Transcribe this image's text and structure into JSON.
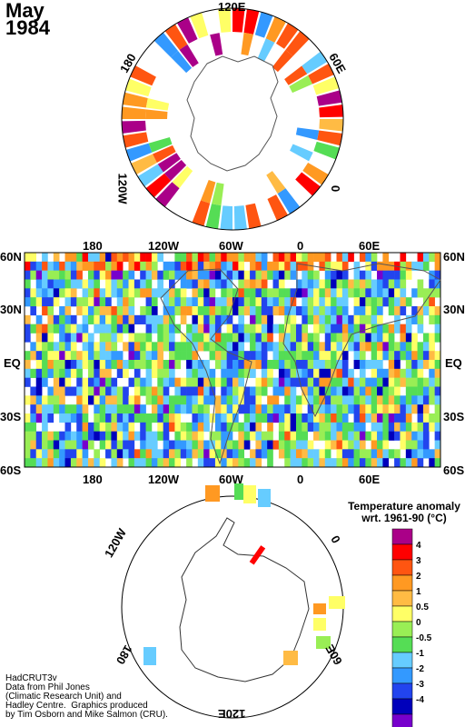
{
  "title": {
    "month": "May",
    "year": "1984"
  },
  "north_polar": {
    "labels": {
      "top": "120E",
      "left": "180",
      "right": "60E",
      "lower_left": "120W",
      "lower_right": "0"
    }
  },
  "global_map": {
    "top_labels": [
      "180",
      "120W",
      "60W",
      "0",
      "60E"
    ],
    "bottom_labels": [
      "180",
      "120W",
      "60W",
      "0",
      "60E"
    ],
    "lat_labels": [
      "60N",
      "30N",
      "EQ",
      "30S",
      "60S"
    ]
  },
  "south_polar": {
    "labels": {
      "upper_left": "120W",
      "top_right": "0",
      "left": "180",
      "lower_right": "60E",
      "bottom": "120E"
    }
  },
  "legend": {
    "title_line1": "Temperature anomaly",
    "title_line2": "wrt. 1961-90  (°C)",
    "levels": [
      "4",
      "3",
      "2",
      "1",
      "0.5",
      "0",
      "-0.5",
      "-1",
      "-2",
      "-3",
      "-4"
    ],
    "colors": [
      "#aa0088",
      "#ff0000",
      "#ff5511",
      "#ff9922",
      "#ffbb44",
      "#ffff66",
      "#99ee55",
      "#55dd55",
      "#66ccff",
      "#3399ff",
      "#2244ee",
      "#0000bb",
      "#7700cc"
    ]
  },
  "credits": {
    "line1": "HadCRUT3v",
    "line2": "Data from Phil Jones",
    "line3": "(Climatic Research Unit) and",
    "line4": "Hadley Centre.  Graphics produced",
    "line5": "by Tim Osborn and Mike Salmon (CRU)."
  }
}
